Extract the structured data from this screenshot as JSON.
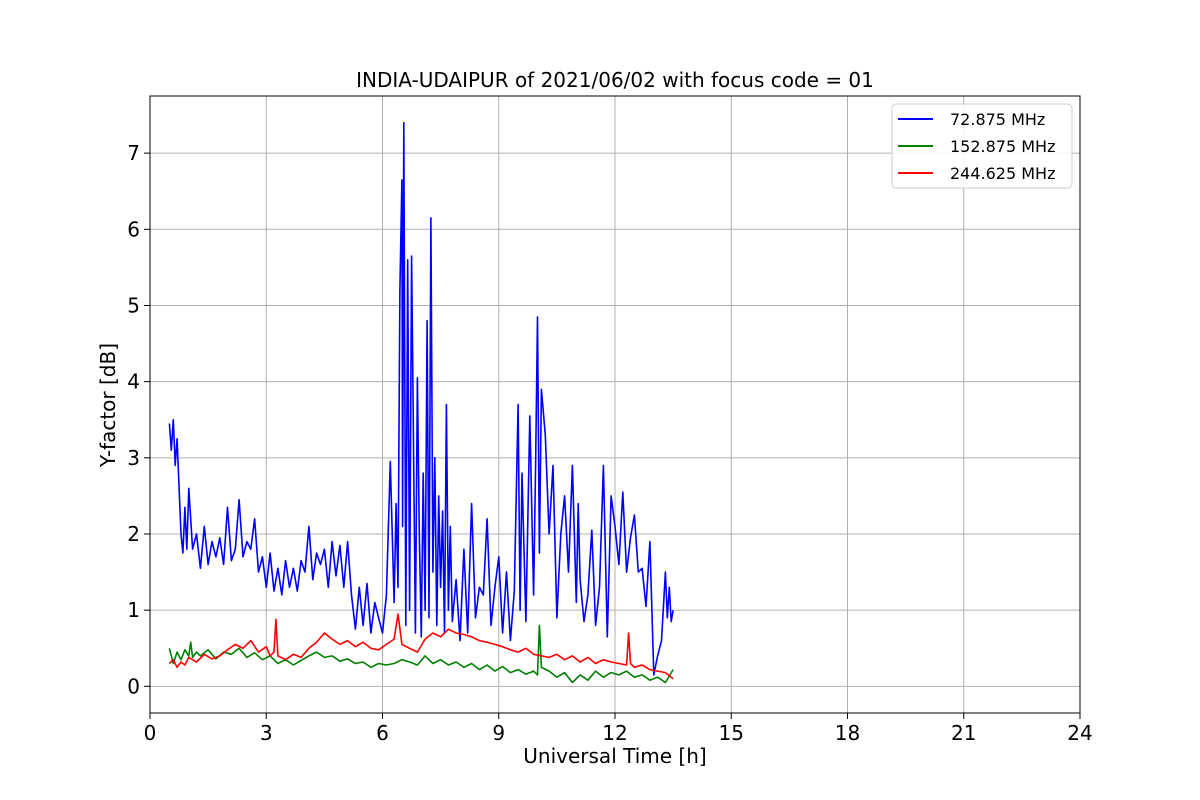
{
  "chart_data": {
    "type": "line",
    "title": "INDIA-UDAIPUR of 2021/06/02 with focus code = 01",
    "xlabel": "Universal Time [h]",
    "ylabel": "Y-factor [dB]",
    "xlim": [
      0,
      24
    ],
    "ylim": [
      -0.35,
      7.75
    ],
    "xticks": [
      0,
      3,
      6,
      9,
      12,
      15,
      18,
      21,
      24
    ],
    "yticks": [
      0,
      1,
      2,
      3,
      4,
      5,
      6,
      7
    ],
    "grid": true,
    "legend_position": "top-right",
    "series": [
      {
        "name": "72.875 MHz",
        "color": "#0000ff",
        "x": [
          0.5,
          0.55,
          0.6,
          0.65,
          0.7,
          0.75,
          0.8,
          0.85,
          0.9,
          0.95,
          1.0,
          1.1,
          1.2,
          1.3,
          1.4,
          1.5,
          1.6,
          1.7,
          1.8,
          1.9,
          2.0,
          2.1,
          2.2,
          2.3,
          2.4,
          2.5,
          2.6,
          2.7,
          2.8,
          2.9,
          3.0,
          3.1,
          3.2,
          3.3,
          3.4,
          3.5,
          3.6,
          3.7,
          3.8,
          3.9,
          4.0,
          4.1,
          4.2,
          4.3,
          4.4,
          4.5,
          4.6,
          4.7,
          4.8,
          4.9,
          5.0,
          5.1,
          5.2,
          5.3,
          5.4,
          5.5,
          5.6,
          5.7,
          5.8,
          5.9,
          6.0,
          6.1,
          6.2,
          6.3,
          6.35,
          6.4,
          6.45,
          6.5,
          6.52,
          6.55,
          6.6,
          6.65,
          6.7,
          6.75,
          6.8,
          6.85,
          6.9,
          6.95,
          7.0,
          7.05,
          7.1,
          7.15,
          7.2,
          7.25,
          7.3,
          7.35,
          7.4,
          7.45,
          7.5,
          7.55,
          7.6,
          7.65,
          7.7,
          7.75,
          7.8,
          7.9,
          8.0,
          8.1,
          8.2,
          8.3,
          8.4,
          8.5,
          8.6,
          8.7,
          8.8,
          8.9,
          9.0,
          9.1,
          9.2,
          9.3,
          9.4,
          9.5,
          9.55,
          9.6,
          9.7,
          9.8,
          9.9,
          9.95,
          10.0,
          10.05,
          10.1,
          10.2,
          10.3,
          10.4,
          10.5,
          10.6,
          10.7,
          10.8,
          10.9,
          11.0,
          11.05,
          11.1,
          11.2,
          11.3,
          11.4,
          11.5,
          11.6,
          11.7,
          11.8,
          11.9,
          12.0,
          12.1,
          12.2,
          12.3,
          12.4,
          12.5,
          12.6,
          12.7,
          12.8,
          12.9,
          13.0,
          13.1,
          13.2,
          13.3,
          13.35,
          13.4,
          13.45,
          13.5
        ],
        "y": [
          3.45,
          3.1,
          3.5,
          2.9,
          3.25,
          2.6,
          2.0,
          1.75,
          2.35,
          1.8,
          2.6,
          1.8,
          2.0,
          1.55,
          2.1,
          1.6,
          1.9,
          1.7,
          1.95,
          1.6,
          2.35,
          1.65,
          1.8,
          2.45,
          1.7,
          1.9,
          1.8,
          2.2,
          1.5,
          1.7,
          1.3,
          1.75,
          1.25,
          1.55,
          1.2,
          1.65,
          1.3,
          1.55,
          1.25,
          1.65,
          1.5,
          2.1,
          1.4,
          1.75,
          1.6,
          1.8,
          1.3,
          1.9,
          1.45,
          1.85,
          1.3,
          1.9,
          1.2,
          0.75,
          1.3,
          0.8,
          1.35,
          0.7,
          1.1,
          0.9,
          0.7,
          1.2,
          2.95,
          1.1,
          2.4,
          1.3,
          5.2,
          6.65,
          2.1,
          7.4,
          0.8,
          5.6,
          1.0,
          5.65,
          3.2,
          0.7,
          4.05,
          2.0,
          0.65,
          2.8,
          1.0,
          4.8,
          0.9,
          6.15,
          1.5,
          3.0,
          0.8,
          2.5,
          1.3,
          2.3,
          0.7,
          3.7,
          1.0,
          2.1,
          0.85,
          1.4,
          0.6,
          1.8,
          0.7,
          2.4,
          0.9,
          1.3,
          1.2,
          2.2,
          0.8,
          1.3,
          1.7,
          0.7,
          1.5,
          0.6,
          1.25,
          3.7,
          1.0,
          2.8,
          0.85,
          3.55,
          1.2,
          2.9,
          4.85,
          1.75,
          3.9,
          3.3,
          2.0,
          2.9,
          0.9,
          2.0,
          2.5,
          1.5,
          2.9,
          1.1,
          2.4,
          1.4,
          0.85,
          1.2,
          2.05,
          0.8,
          1.3,
          2.9,
          0.65,
          2.5,
          2.1,
          1.6,
          2.55,
          1.5,
          1.95,
          2.25,
          1.5,
          1.55,
          1.05,
          1.9,
          0.15,
          0.4,
          0.6,
          1.5,
          0.9,
          1.3,
          0.85,
          1.0
        ]
      },
      {
        "name": "152.875 MHz",
        "color": "#008000",
        "x": [
          0.5,
          0.6,
          0.7,
          0.8,
          0.9,
          1.0,
          1.05,
          1.1,
          1.2,
          1.3,
          1.5,
          1.7,
          1.9,
          2.1,
          2.3,
          2.5,
          2.7,
          2.9,
          3.1,
          3.3,
          3.5,
          3.7,
          3.9,
          4.1,
          4.3,
          4.5,
          4.7,
          4.9,
          5.1,
          5.3,
          5.5,
          5.7,
          5.9,
          6.1,
          6.3,
          6.5,
          6.7,
          6.9,
          7.1,
          7.3,
          7.5,
          7.7,
          7.9,
          8.1,
          8.3,
          8.5,
          8.7,
          8.9,
          9.1,
          9.3,
          9.5,
          9.7,
          9.9,
          10.0,
          10.05,
          10.1,
          10.3,
          10.5,
          10.7,
          10.9,
          11.1,
          11.3,
          11.5,
          11.7,
          11.9,
          12.1,
          12.3,
          12.5,
          12.7,
          12.9,
          13.1,
          13.3,
          13.5
        ],
        "y": [
          0.5,
          0.3,
          0.45,
          0.35,
          0.48,
          0.4,
          0.58,
          0.38,
          0.45,
          0.4,
          0.48,
          0.36,
          0.45,
          0.42,
          0.5,
          0.38,
          0.44,
          0.35,
          0.4,
          0.3,
          0.35,
          0.28,
          0.34,
          0.4,
          0.45,
          0.38,
          0.4,
          0.33,
          0.36,
          0.3,
          0.32,
          0.25,
          0.3,
          0.28,
          0.3,
          0.35,
          0.32,
          0.28,
          0.4,
          0.3,
          0.35,
          0.28,
          0.32,
          0.25,
          0.3,
          0.22,
          0.28,
          0.2,
          0.26,
          0.18,
          0.22,
          0.16,
          0.2,
          0.15,
          0.8,
          0.25,
          0.2,
          0.12,
          0.18,
          0.05,
          0.15,
          0.08,
          0.2,
          0.12,
          0.18,
          0.15,
          0.2,
          0.12,
          0.15,
          0.08,
          0.12,
          0.05,
          0.22
        ]
      },
      {
        "name": "244.625 MHz",
        "color": "#ff0000",
        "x": [
          0.5,
          0.6,
          0.7,
          0.8,
          0.9,
          1.0,
          1.2,
          1.4,
          1.6,
          1.8,
          2.0,
          2.2,
          2.4,
          2.6,
          2.8,
          3.0,
          3.1,
          3.2,
          3.25,
          3.3,
          3.5,
          3.7,
          3.9,
          4.1,
          4.3,
          4.5,
          4.7,
          4.9,
          5.1,
          5.3,
          5.5,
          5.7,
          5.9,
          6.1,
          6.3,
          6.4,
          6.5,
          6.7,
          6.9,
          7.1,
          7.3,
          7.5,
          7.7,
          7.9,
          8.1,
          8.3,
          8.5,
          8.7,
          8.9,
          9.1,
          9.3,
          9.5,
          9.7,
          9.9,
          10.1,
          10.3,
          10.5,
          10.7,
          10.9,
          11.1,
          11.3,
          11.5,
          11.7,
          11.9,
          12.1,
          12.3,
          12.35,
          12.4,
          12.5,
          12.7,
          12.9,
          13.1,
          13.3,
          13.5
        ],
        "y": [
          0.3,
          0.35,
          0.25,
          0.32,
          0.28,
          0.38,
          0.32,
          0.42,
          0.36,
          0.4,
          0.48,
          0.55,
          0.5,
          0.6,
          0.45,
          0.52,
          0.4,
          0.45,
          0.88,
          0.4,
          0.35,
          0.42,
          0.38,
          0.5,
          0.58,
          0.7,
          0.62,
          0.55,
          0.6,
          0.52,
          0.58,
          0.5,
          0.48,
          0.55,
          0.62,
          0.95,
          0.55,
          0.5,
          0.45,
          0.62,
          0.7,
          0.65,
          0.75,
          0.7,
          0.68,
          0.65,
          0.6,
          0.58,
          0.55,
          0.52,
          0.48,
          0.45,
          0.5,
          0.42,
          0.4,
          0.38,
          0.42,
          0.35,
          0.4,
          0.32,
          0.38,
          0.3,
          0.35,
          0.32,
          0.3,
          0.28,
          0.7,
          0.3,
          0.25,
          0.28,
          0.22,
          0.2,
          0.18,
          0.1
        ]
      }
    ]
  }
}
